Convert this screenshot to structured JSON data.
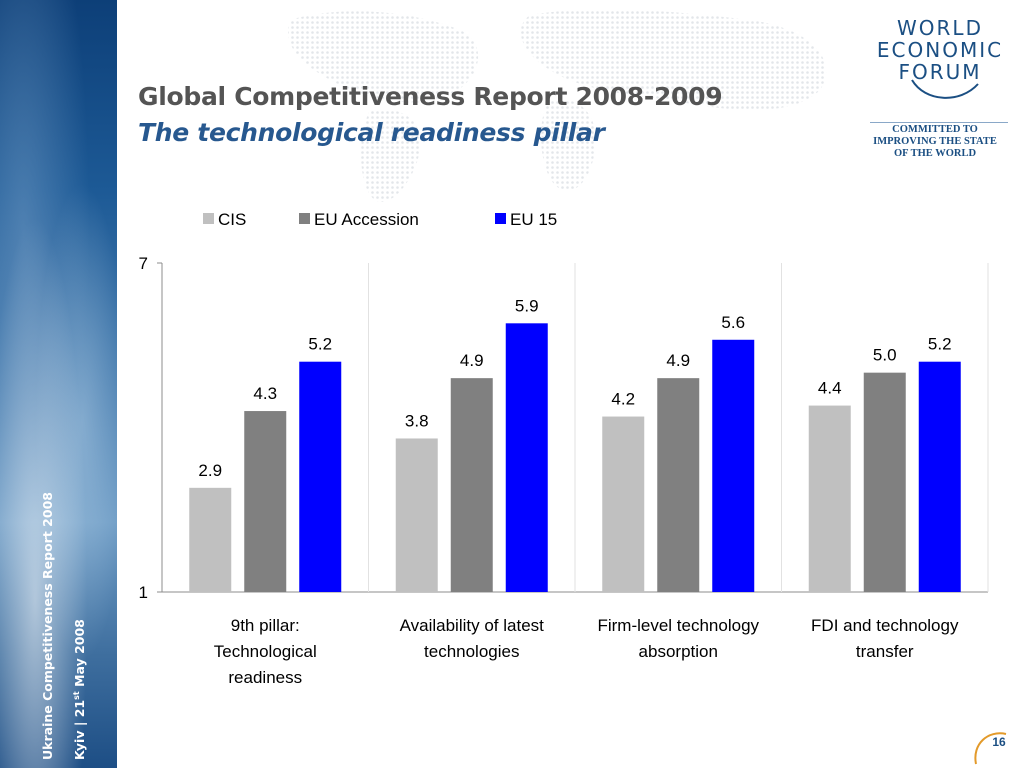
{
  "slide": {
    "title": "Global Competitiveness Report 2008-2009",
    "subtitle": "The technological readiness pillar",
    "side_text_1": "Ukraine Competitiveness Report 2008",
    "side_text_2": "Kyiv | 21st May 2008",
    "page_number": "16"
  },
  "logo": {
    "lines": [
      "WORLD",
      "ECONOMIC",
      "FORUM"
    ],
    "tagline": [
      "COMMITTED TO",
      "IMPROVING THE STATE",
      "OF THE WORLD"
    ]
  },
  "chart_data": {
    "type": "bar",
    "categories": [
      [
        "9th pillar:",
        "Technological",
        "readiness"
      ],
      [
        "Availability of latest",
        "technologies"
      ],
      [
        "Firm-level technology",
        "absorption"
      ],
      [
        "FDI and technology",
        "transfer"
      ]
    ],
    "series": [
      {
        "name": "CIS",
        "color": "#c0c0c0",
        "values": [
          2.9,
          3.8,
          4.2,
          4.4
        ]
      },
      {
        "name": "EU Accession",
        "color": "#808080",
        "values": [
          4.3,
          4.9,
          4.9,
          5.0
        ]
      },
      {
        "name": "EU 15",
        "color": "#0000ff",
        "values": [
          5.2,
          5.9,
          5.6,
          5.2
        ]
      }
    ],
    "ylim": [
      1,
      7
    ],
    "yticks": [
      "1",
      "7"
    ],
    "legend": "top",
    "grid": false
  }
}
